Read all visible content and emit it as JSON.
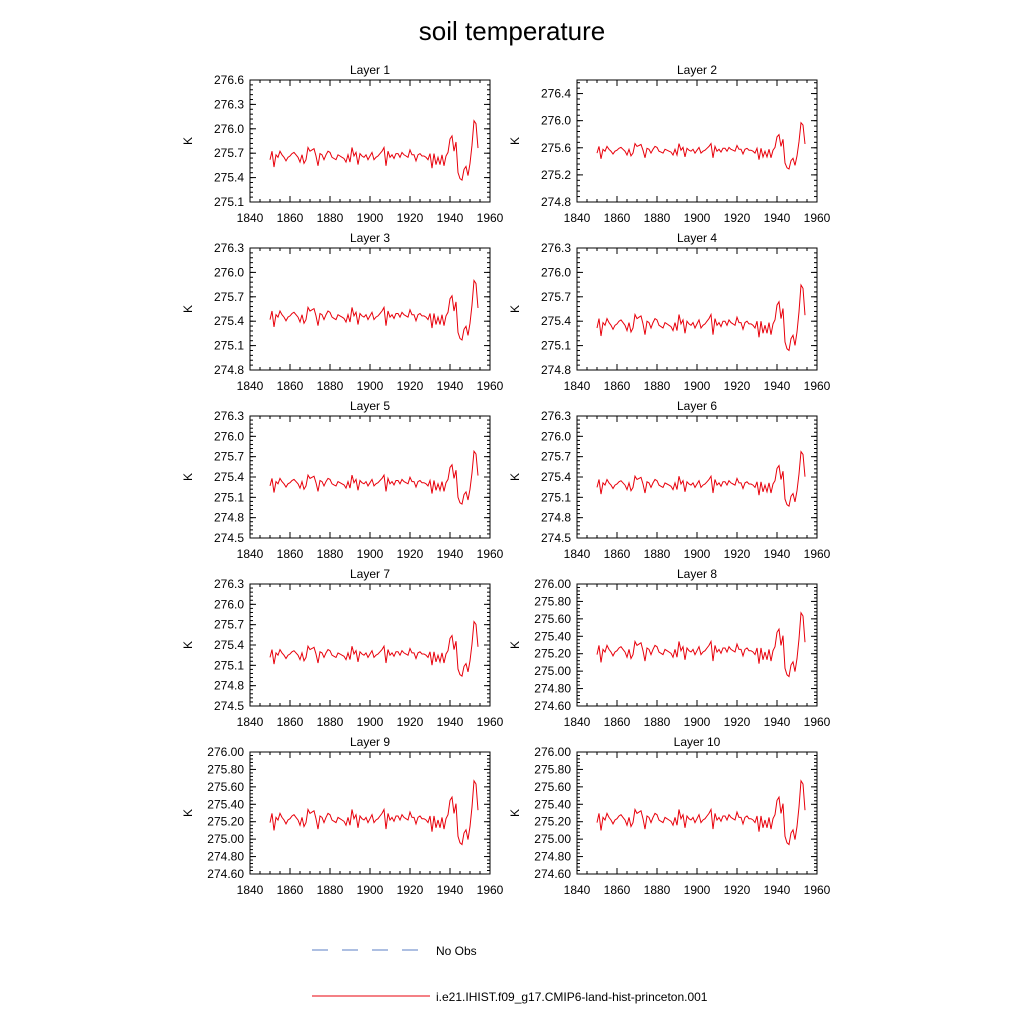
{
  "chart_data": {
    "title": "soil temperature",
    "type": "line",
    "x_range": [
      1840,
      1960
    ],
    "x_ticks": [
      1840,
      1860,
      1880,
      1900,
      1920,
      1940,
      1960
    ],
    "ylabel": "K",
    "x": [
      1850,
      1851,
      1852,
      1853,
      1854,
      1855,
      1856,
      1857,
      1858,
      1859,
      1860,
      1861,
      1862,
      1863,
      1864,
      1865,
      1866,
      1867,
      1868,
      1869,
      1870,
      1871,
      1872,
      1873,
      1874,
      1875,
      1876,
      1877,
      1878,
      1879,
      1880,
      1881,
      1882,
      1883,
      1884,
      1885,
      1886,
      1887,
      1888,
      1889,
      1890,
      1891,
      1892,
      1893,
      1894,
      1895,
      1896,
      1897,
      1898,
      1899,
      1900,
      1901,
      1902,
      1903,
      1904,
      1905,
      1906,
      1907,
      1908,
      1909,
      1910,
      1911,
      1912,
      1913,
      1914,
      1915,
      1916,
      1917,
      1918,
      1919,
      1920,
      1921,
      1922,
      1923,
      1924,
      1925,
      1926,
      1927,
      1928,
      1929,
      1930,
      1931,
      1932,
      1933,
      1934,
      1935,
      1936,
      1937,
      1938,
      1939,
      1940,
      1941,
      1942,
      1943,
      1944,
      1945,
      1946,
      1947,
      1948,
      1949,
      1950,
      1951,
      1952,
      1953,
      1954
    ],
    "panels": [
      {
        "title": "Layer 1",
        "ylim": [
          275.1,
          276.6
        ],
        "yticks": [
          "275.1",
          "275.4",
          "275.7",
          "276.0",
          "276.3",
          "276.6"
        ],
        "base": 275.65,
        "amp": 0.3
      },
      {
        "title": "Layer 2",
        "ylim": [
          274.8,
          276.6
        ],
        "yticks": [
          "274.8",
          "275.2",
          "275.6",
          "276.0",
          "276.4"
        ],
        "base": 275.55,
        "amp": 0.28
      },
      {
        "title": "Layer 3",
        "ylim": [
          274.8,
          276.3
        ],
        "yticks": [
          "274.8",
          "275.1",
          "275.4",
          "275.7",
          "276.0",
          "276.3"
        ],
        "base": 275.45,
        "amp": 0.3
      },
      {
        "title": "Layer 4",
        "ylim": [
          274.8,
          276.3
        ],
        "yticks": [
          "274.8",
          "275.1",
          "275.4",
          "275.7",
          "276.0",
          "276.3"
        ],
        "base": 275.35,
        "amp": 0.33
      },
      {
        "title": "Layer 5",
        "ylim": [
          274.5,
          276.3
        ],
        "yticks": [
          "274.5",
          "274.8",
          "275.1",
          "275.4",
          "275.7",
          "276.0",
          "276.3"
        ],
        "base": 275.3,
        "amp": 0.32
      },
      {
        "title": "Layer 6",
        "ylim": [
          274.5,
          276.3
        ],
        "yticks": [
          "274.5",
          "274.8",
          "275.1",
          "275.4",
          "275.7",
          "276.0",
          "276.3"
        ],
        "base": 275.28,
        "amp": 0.33
      },
      {
        "title": "Layer 7",
        "ylim": [
          274.5,
          276.3
        ],
        "yticks": [
          "274.5",
          "274.8",
          "275.1",
          "275.4",
          "275.7",
          "276.0",
          "276.3"
        ],
        "base": 275.25,
        "amp": 0.33
      },
      {
        "title": "Layer 8",
        "ylim": [
          274.6,
          276.0
        ],
        "yticks": [
          "274.60",
          "274.80",
          "275.00",
          "275.20",
          "275.40",
          "275.60",
          "275.80",
          "276.00"
        ],
        "base": 275.22,
        "amp": 0.3
      },
      {
        "title": "Layer 9",
        "ylim": [
          274.6,
          276.0
        ],
        "yticks": [
          "274.60",
          "274.80",
          "275.00",
          "275.20",
          "275.40",
          "275.60",
          "275.80",
          "276.00"
        ],
        "base": 275.22,
        "amp": 0.3
      },
      {
        "title": "Layer 10",
        "ylim": [
          274.6,
          276.0
        ],
        "yticks": [
          "274.60",
          "274.80",
          "275.00",
          "275.20",
          "275.40",
          "275.60",
          "275.80",
          "276.00"
        ],
        "base": 275.22,
        "amp": 0.3
      }
    ],
    "anomaly": [
      -0.1,
      0.25,
      -0.4,
      0.1,
      0.0,
      0.25,
      0.1,
      0.0,
      -0.15,
      0.0,
      0.05,
      0.15,
      0.2,
      0.1,
      0.0,
      -0.2,
      0.1,
      -0.25,
      -0.1,
      0.4,
      0.25,
      0.3,
      0.35,
      0.05,
      -0.35,
      0.15,
      0.1,
      -0.1,
      0.1,
      0.25,
      0.2,
      0.0,
      -0.05,
      -0.1,
      0.1,
      0.05,
      0.0,
      -0.05,
      -0.2,
      0.1,
      -0.2,
      0.4,
      0.05,
      0.2,
      -0.3,
      0.15,
      0.05,
      0.0,
      0.1,
      -0.1,
      0.05,
      0.2,
      -0.1,
      0.0,
      0.05,
      0.15,
      0.25,
      0.4,
      -0.35,
      0.25,
      0.0,
      0.1,
      -0.05,
      0.15,
      0.15,
      0.0,
      0.2,
      0.1,
      0.05,
      0.0,
      0.3,
      0.1,
      0.1,
      -0.15,
      0.1,
      0.15,
      0.05,
      0.05,
      0.0,
      -0.1,
      0.15,
      -0.45,
      0.15,
      -0.3,
      0.0,
      -0.3,
      0.1,
      -0.35,
      0.05,
      0.2,
      -0.45,
      0.3,
      0.15,
      0.0,
      0.1,
      0.15,
      0.55,
      0.7,
      0.2,
      -0.6,
      -0.1,
      0.5,
      0.65,
      0.3,
      -0.2
    ],
    "late": [
      0.6,
      0.7,
      0.2,
      0.5,
      -0.5,
      -0.7,
      -0.75,
      -0.4,
      -0.3,
      -0.6,
      -0.2,
      0.4,
      1.2,
      1.1,
      0.3
    ],
    "legend": [
      {
        "label": "No Obs",
        "color": "#5b7fc4",
        "style": "dashed"
      },
      {
        "label": "i.e21.IHIST.f09_g17.CMIP6-land-hist-princeton.001",
        "color": "#e8000b",
        "style": "solid"
      }
    ]
  }
}
